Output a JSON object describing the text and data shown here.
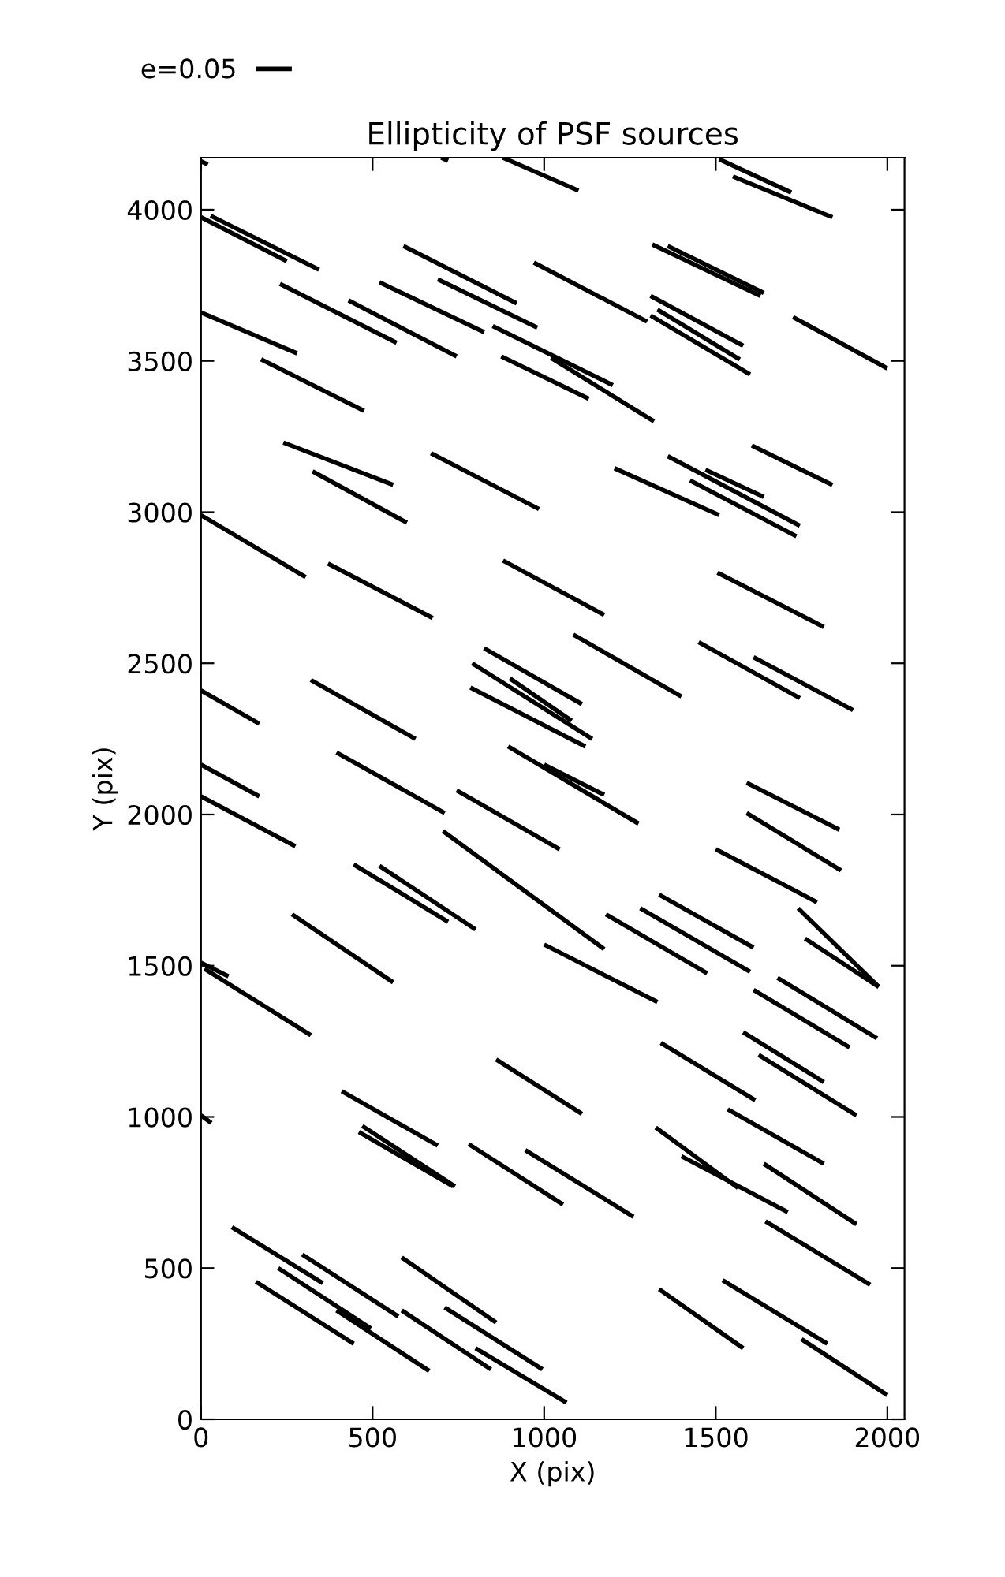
{
  "chart_data": {
    "type": "line",
    "title": "Ellipticity of PSF sources",
    "xlabel": "X (pix)",
    "ylabel": "Y (pix)",
    "xlim": [
      0,
      2050
    ],
    "ylim": [
      0,
      4172
    ],
    "xticks": [
      0,
      500,
      1000,
      1500,
      2000
    ],
    "yticks": [
      0,
      500,
      1000,
      1500,
      2000,
      2500,
      3000,
      3500,
      4000
    ],
    "grid": false,
    "legend": "top left",
    "marker": "none",
    "line_style": "solid",
    "series": [
      {
        "name": "e=0.05",
        "color": "#000000",
        "x": [
          0,
          20
        ],
        "values": [
          4160,
          4150
        ]
      },
      {
        "color": "#000000",
        "x": [
          700,
          720
        ],
        "values": [
          4172,
          4162
        ]
      },
      {
        "color": "#000000",
        "x": [
          880,
          1100
        ],
        "values": [
          4172,
          4063
        ]
      },
      {
        "color": "#000000",
        "x": [
          1510,
          1720
        ],
        "values": [
          4167,
          4057
        ]
      },
      {
        "color": "#000000",
        "x": [
          1550,
          1840
        ],
        "values": [
          4110,
          3975
        ]
      },
      {
        "color": "#000000",
        "x": [
          0,
          250
        ],
        "values": [
          3975,
          3830
        ]
      },
      {
        "color": "#000000",
        "x": [
          28,
          344
        ],
        "values": [
          3980,
          3802
        ]
      },
      {
        "color": "#000000",
        "x": [
          590,
          920
        ],
        "values": [
          3880,
          3690
        ]
      },
      {
        "color": "#000000",
        "x": [
          690,
          980
        ],
        "values": [
          3770,
          3610
        ]
      },
      {
        "color": "#000000",
        "x": [
          970,
          1300
        ],
        "values": [
          3825,
          3630
        ]
      },
      {
        "color": "#000000",
        "x": [
          230,
          570
        ],
        "values": [
          3755,
          3560
        ]
      },
      {
        "color": "#000000",
        "x": [
          430,
          745
        ],
        "values": [
          3700,
          3515
        ]
      },
      {
        "color": "#000000",
        "x": [
          520,
          825
        ],
        "values": [
          3760,
          3595
        ]
      },
      {
        "color": "#000000",
        "x": [
          850,
          1200
        ],
        "values": [
          3615,
          3420
        ]
      },
      {
        "color": "#000000",
        "x": [
          875,
          1130
        ],
        "values": [
          3515,
          3375
        ]
      },
      {
        "color": "#000000",
        "x": [
          1020,
          1320
        ],
        "values": [
          3510,
          3300
        ]
      },
      {
        "color": "#000000",
        "x": [
          1315,
          1630
        ],
        "values": [
          3885,
          3715
        ]
      },
      {
        "color": "#000000",
        "x": [
          1360,
          1640
        ],
        "values": [
          3880,
          3725
        ]
      },
      {
        "color": "#000000",
        "x": [
          1310,
          1580
        ],
        "values": [
          3715,
          3550
        ]
      },
      {
        "color": "#000000",
        "x": [
          1330,
          1570
        ],
        "values": [
          3670,
          3505
        ]
      },
      {
        "color": "#000000",
        "x": [
          1310,
          1600
        ],
        "values": [
          3650,
          3455
        ]
      },
      {
        "color": "#000000",
        "x": [
          1725,
          2000
        ],
        "values": [
          3645,
          3475
        ]
      },
      {
        "color": "#000000",
        "x": [
          0,
          280
        ],
        "values": [
          3660,
          3525
        ]
      },
      {
        "color": "#000000",
        "x": [
          175,
          475
        ],
        "values": [
          3505,
          3335
        ]
      },
      {
        "color": "#000000",
        "x": [
          240,
          560
        ],
        "values": [
          3230,
          3090
        ]
      },
      {
        "color": "#000000",
        "x": [
          325,
          600
        ],
        "values": [
          3135,
          2965
        ]
      },
      {
        "color": "#000000",
        "x": [
          670,
          985
        ],
        "values": [
          3195,
          3010
        ]
      },
      {
        "color": "#000000",
        "x": [
          0,
          305
        ],
        "values": [
          2990,
          2785
        ]
      },
      {
        "color": "#000000",
        "x": [
          1205,
          1510
        ],
        "values": [
          3145,
          2990
        ]
      },
      {
        "color": "#000000",
        "x": [
          1360,
          1745
        ],
        "values": [
          3185,
          2955
        ]
      },
      {
        "color": "#000000",
        "x": [
          1470,
          1640
        ],
        "values": [
          3140,
          3050
        ]
      },
      {
        "color": "#000000",
        "x": [
          1425,
          1735
        ],
        "values": [
          3105,
          2920
        ]
      },
      {
        "color": "#000000",
        "x": [
          1605,
          1840
        ],
        "values": [
          3220,
          3090
        ]
      },
      {
        "color": "#000000",
        "x": [
          1505,
          1815
        ],
        "values": [
          2800,
          2620
        ]
      },
      {
        "color": "#000000",
        "x": [
          370,
          675
        ],
        "values": [
          2830,
          2650
        ]
      },
      {
        "color": "#000000",
        "x": [
          880,
          1175
        ],
        "values": [
          2840,
          2660
        ]
      },
      {
        "color": "#000000",
        "x": [
          1085,
          1400
        ],
        "values": [
          2595,
          2390
        ]
      },
      {
        "color": "#000000",
        "x": [
          1450,
          1745
        ],
        "values": [
          2570,
          2385
        ]
      },
      {
        "color": "#000000",
        "x": [
          1610,
          1900
        ],
        "values": [
          2520,
          2345
        ]
      },
      {
        "color": "#000000",
        "x": [
          0,
          170
        ],
        "values": [
          2410,
          2300
        ]
      },
      {
        "color": "#000000",
        "x": [
          320,
          625
        ],
        "values": [
          2445,
          2250
        ]
      },
      {
        "color": "#000000",
        "x": [
          825,
          1110
        ],
        "values": [
          2550,
          2365
        ]
      },
      {
        "color": "#000000",
        "x": [
          790,
          1140
        ],
        "values": [
          2500,
          2250
        ]
      },
      {
        "color": "#000000",
        "x": [
          900,
          1080
        ],
        "values": [
          2450,
          2310
        ]
      },
      {
        "color": "#000000",
        "x": [
          785,
          1120
        ],
        "values": [
          2420,
          2225
        ]
      },
      {
        "color": "#000000",
        "x": [
          895,
          1275
        ],
        "values": [
          2225,
          1970
        ]
      },
      {
        "color": "#000000",
        "x": [
          1000,
          1175
        ],
        "values": [
          2165,
          2065
        ]
      },
      {
        "color": "#000000",
        "x": [
          0,
          170
        ],
        "values": [
          2165,
          2060
        ]
      },
      {
        "color": "#000000",
        "x": [
          0,
          275
        ],
        "values": [
          2060,
          1895
        ]
      },
      {
        "color": "#000000",
        "x": [
          395,
          710
        ],
        "values": [
          2205,
          2005
        ]
      },
      {
        "color": "#000000",
        "x": [
          745,
          1045
        ],
        "values": [
          2080,
          1885
        ]
      },
      {
        "color": "#000000",
        "x": [
          705,
          1175
        ],
        "values": [
          1945,
          1555
        ]
      },
      {
        "color": "#000000",
        "x": [
          1000,
          1330
        ],
        "values": [
          1570,
          1380
        ]
      },
      {
        "color": "#000000",
        "x": [
          1180,
          1475
        ],
        "values": [
          1670,
          1475
        ]
      },
      {
        "color": "#000000",
        "x": [
          1280,
          1600
        ],
        "values": [
          1690,
          1480
        ]
      },
      {
        "color": "#000000",
        "x": [
          1335,
          1610
        ],
        "values": [
          1735,
          1560
        ]
      },
      {
        "color": "#000000",
        "x": [
          1590,
          1860
        ],
        "values": [
          2105,
          1950
        ]
      },
      {
        "color": "#000000",
        "x": [
          1590,
          1865
        ],
        "values": [
          2005,
          1815
        ]
      },
      {
        "color": "#000000",
        "x": [
          1500,
          1795
        ],
        "values": [
          1885,
          1710
        ]
      },
      {
        "color": "#000000",
        "x": [
          1740,
          1975
        ],
        "values": [
          1690,
          1430
        ]
      },
      {
        "color": "#000000",
        "x": [
          1760,
          1975
        ],
        "values": [
          1590,
          1430
        ]
      },
      {
        "color": "#000000",
        "x": [
          445,
          720
        ],
        "values": [
          1835,
          1645
        ]
      },
      {
        "color": "#000000",
        "x": [
          520,
          800
        ],
        "values": [
          1830,
          1620
        ]
      },
      {
        "color": "#000000",
        "x": [
          265,
          560
        ],
        "values": [
          1670,
          1445
        ]
      },
      {
        "color": "#000000",
        "x": [
          0,
          80
        ],
        "values": [
          1510,
          1465
        ]
      },
      {
        "color": "#000000",
        "x": [
          10,
          320
        ],
        "values": [
          1490,
          1270
        ]
      },
      {
        "color": "#000000",
        "x": [
          1610,
          1890
        ],
        "values": [
          1420,
          1230
        ]
      },
      {
        "color": "#000000",
        "x": [
          1680,
          1970
        ],
        "values": [
          1460,
          1260
        ]
      },
      {
        "color": "#000000",
        "x": [
          1580,
          1815
        ],
        "values": [
          1280,
          1115
        ]
      },
      {
        "color": "#000000",
        "x": [
          1625,
          1910
        ],
        "values": [
          1205,
          1005
        ]
      },
      {
        "color": "#000000",
        "x": [
          1340,
          1615
        ],
        "values": [
          1245,
          1055
        ]
      },
      {
        "color": "#000000",
        "x": [
          1535,
          1815
        ],
        "values": [
          1025,
          845
        ]
      },
      {
        "color": "#000000",
        "x": [
          1325,
          1565
        ],
        "values": [
          965,
          765
        ]
      },
      {
        "color": "#000000",
        "x": [
          1400,
          1710
        ],
        "values": [
          870,
          685
        ]
      },
      {
        "color": "#000000",
        "x": [
          1640,
          1910
        ],
        "values": [
          845,
          645
        ]
      },
      {
        "color": "#000000",
        "x": [
          1645,
          1950
        ],
        "values": [
          655,
          445
        ]
      },
      {
        "color": "#000000",
        "x": [
          1520,
          1825
        ],
        "values": [
          460,
          250
        ]
      },
      {
        "color": "#000000",
        "x": [
          1750,
          2000
        ],
        "values": [
          265,
          80
        ]
      },
      {
        "color": "#000000",
        "x": [
          1335,
          1580
        ],
        "values": [
          430,
          235
        ]
      },
      {
        "color": "#000000",
        "x": [
          860,
          1110
        ],
        "values": [
          1190,
          1010
        ]
      },
      {
        "color": "#000000",
        "x": [
          945,
          1260
        ],
        "values": [
          890,
          670
        ]
      },
      {
        "color": "#000000",
        "x": [
          780,
          1055
        ],
        "values": [
          910,
          710
        ]
      },
      {
        "color": "#000000",
        "x": [
          800,
          1065
        ],
        "values": [
          235,
          55
        ]
      },
      {
        "color": "#000000",
        "x": [
          410,
          690
        ],
        "values": [
          1085,
          905
        ]
      },
      {
        "color": "#000000",
        "x": [
          470,
          740
        ],
        "values": [
          970,
          770
        ]
      },
      {
        "color": "#000000",
        "x": [
          460,
          735
        ],
        "values": [
          950,
          770
        ]
      },
      {
        "color": "#000000",
        "x": [
          0,
          30
        ],
        "values": [
          1005,
          980
        ]
      },
      {
        "color": "#000000",
        "x": [
          90,
          355
        ],
        "values": [
          635,
          450
        ]
      },
      {
        "color": "#000000",
        "x": [
          295,
          575
        ],
        "values": [
          545,
          340
        ]
      },
      {
        "color": "#000000",
        "x": [
          225,
          495
        ],
        "values": [
          500,
          300
        ]
      },
      {
        "color": "#000000",
        "x": [
          160,
          445
        ],
        "values": [
          455,
          250
        ]
      },
      {
        "color": "#000000",
        "x": [
          395,
          665
        ],
        "values": [
          360,
          160
        ]
      },
      {
        "color": "#000000",
        "x": [
          585,
          860
        ],
        "values": [
          535,
          320
        ]
      },
      {
        "color": "#000000",
        "x": [
          585,
          845
        ],
        "values": [
          360,
          165
        ]
      },
      {
        "color": "#000000",
        "x": [
          710,
          995
        ],
        "values": [
          370,
          165
        ]
      }
    ]
  }
}
